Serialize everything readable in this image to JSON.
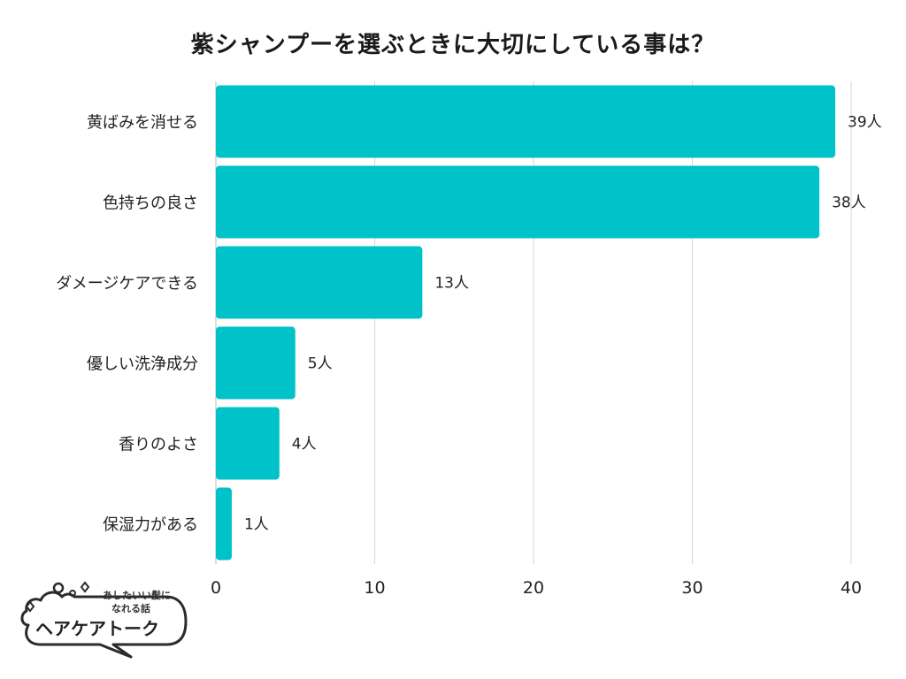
{
  "chart_data": {
    "type": "bar",
    "orientation": "horizontal",
    "title": "紫シャンプーを選ぶときに大切にしている事は？",
    "categories": [
      "黄ばみを消せる",
      "色持ちの良さ",
      "ダメージケアできる",
      "優しい洗浄成分",
      "香りのよさ",
      "保湿力がある"
    ],
    "values": [
      39,
      38,
      13,
      5,
      4,
      1
    ],
    "value_labels": [
      "39人",
      "38人",
      "13人",
      "5人",
      "4人",
      "1人"
    ],
    "xlim": [
      0,
      40
    ],
    "xticks": [
      0,
      10,
      20,
      30,
      40
    ],
    "xtick_labels": [
      "0",
      "10",
      "20",
      "30",
      "40"
    ],
    "xlabel": "",
    "ylabel": "",
    "grid": "vertical",
    "bar_color": "#00c2c9",
    "grid_color": "#d6d6d6"
  },
  "logo": {
    "tagline_line1": "あしたいい髪に",
    "tagline_line2": "なれる話",
    "brand": "ヘアケアトーク",
    "icon": "speech-bubble-sparkle-icon"
  }
}
